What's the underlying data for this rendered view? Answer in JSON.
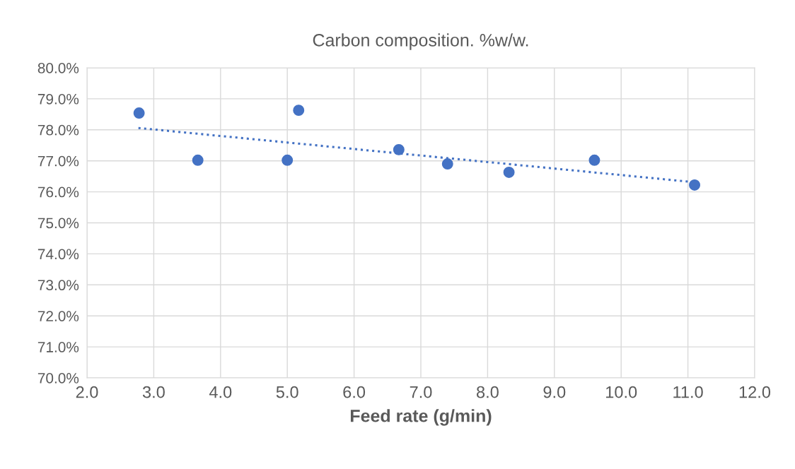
{
  "chart_data": {
    "type": "scatter",
    "title": "Carbon composition. %w/w.",
    "xlabel": "Feed rate (g/min)",
    "series": [
      {
        "color": "#4472c4",
        "marker": "circle",
        "x": [
          2.78,
          3.66,
          5.0,
          5.17,
          6.67,
          7.4,
          8.32,
          9.6,
          11.1
        ],
        "values": [
          78.54,
          77.02,
          77.02,
          78.63,
          77.36,
          76.9,
          76.63,
          77.02,
          76.22
        ]
      },
      {
        "type": "line",
        "color": "#4472c4",
        "line_style": "dotted",
        "marker": "none",
        "x": [
          2.77,
          11.1
        ],
        "values": [
          78.06,
          76.31
        ]
      }
    ],
    "xlim": [
      2.0,
      12.0
    ],
    "xticks": [
      {
        "value": 2,
        "label": "2.0"
      },
      {
        "value": 3,
        "label": "3.0"
      },
      {
        "value": 4,
        "label": "4.0"
      },
      {
        "value": 5,
        "label": "5.0"
      },
      {
        "value": 6,
        "label": "6.0"
      },
      {
        "value": 7,
        "label": "7.0"
      },
      {
        "value": 8,
        "label": "8.0"
      },
      {
        "value": 9,
        "label": "9.0"
      },
      {
        "value": 10,
        "label": "10.0"
      },
      {
        "value": 11,
        "label": "11.0"
      },
      {
        "value": 12,
        "label": "12.0"
      }
    ],
    "ylim": [
      70,
      80
    ],
    "yticks": [
      {
        "value": 70,
        "label": "70.0%"
      },
      {
        "value": 71,
        "label": "71.0%"
      },
      {
        "value": 72,
        "label": "72.0%"
      },
      {
        "value": 73,
        "label": "73.0%"
      },
      {
        "value": 74,
        "label": "74.0%"
      },
      {
        "value": 75,
        "label": "75.0%"
      },
      {
        "value": 76,
        "label": "76.0%"
      },
      {
        "value": 77,
        "label": "77.0%"
      },
      {
        "value": 78,
        "label": "78.0%"
      },
      {
        "value": 79,
        "label": "79.0%"
      },
      {
        "value": 80,
        "label": "80.0%"
      }
    ],
    "grid": true
  }
}
